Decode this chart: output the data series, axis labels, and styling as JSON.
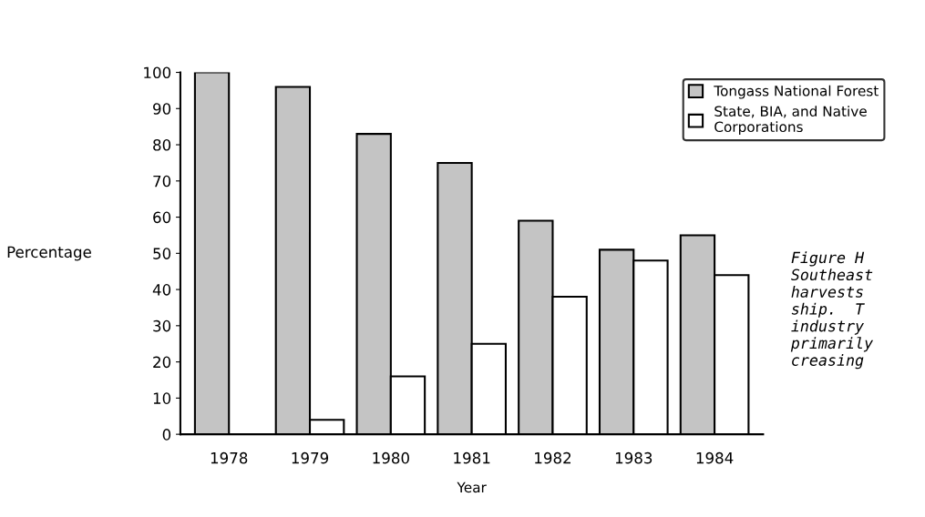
{
  "chart_data": {
    "type": "bar",
    "xlabel": "Year",
    "ylabel": "Percentage",
    "categories": [
      "1978",
      "1979",
      "1980",
      "1981",
      "1982",
      "1983",
      "1984"
    ],
    "series": [
      {
        "name": "Tongass National Forest",
        "color": "#c4c4c4",
        "values": [
          100,
          96,
          83,
          75,
          59,
          51,
          55
        ]
      },
      {
        "name": "State, BIA, and Native\nCorporations",
        "color": "#ffffff",
        "values": [
          null,
          4,
          16,
          25,
          38,
          48,
          44
        ]
      }
    ],
    "ylim": [
      0,
      100
    ],
    "yticks": [
      0,
      10,
      20,
      30,
      40,
      50,
      60,
      70,
      80,
      90,
      100
    ],
    "grid": false,
    "legend": "top right",
    "annotations": [
      "Figure H\nSoutheast\nharvests\nship.  T\nindustry\nprimarily\ncreasing"
    ]
  }
}
